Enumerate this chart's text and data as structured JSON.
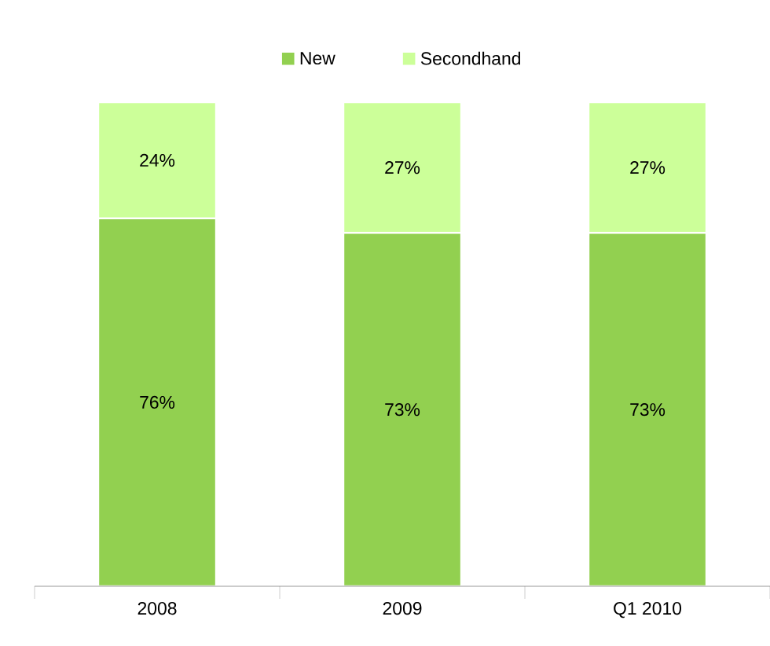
{
  "chart_data": {
    "type": "bar",
    "stacked": true,
    "legend": "top",
    "categories": [
      "2008",
      "2009",
      "Q1 2010"
    ],
    "series": [
      {
        "name": "New",
        "color": "#92d050",
        "values": [
          76,
          73,
          73
        ],
        "value_labels": [
          "76%",
          "73%",
          "73%"
        ]
      },
      {
        "name": "Secondhand",
        "color": "#ccff99",
        "values": [
          24,
          27,
          27
        ],
        "value_labels": [
          "24%",
          "27%",
          "27%"
        ]
      }
    ]
  }
}
